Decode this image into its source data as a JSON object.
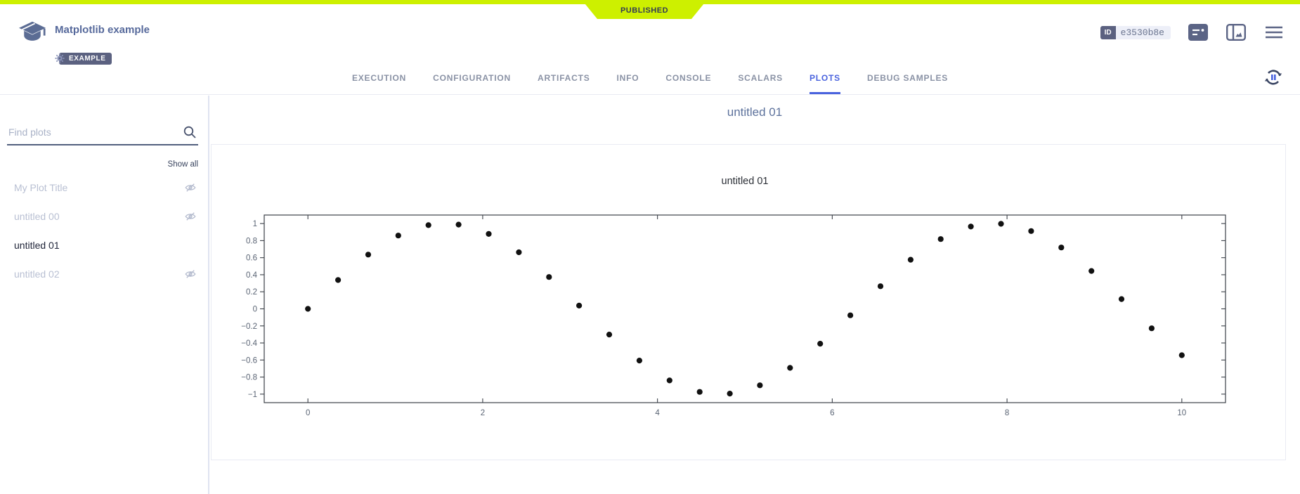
{
  "colors": {
    "status_lime": "#cdf000",
    "tab_active_blue": "#4a63de",
    "slate_icon": "#5b6485",
    "hidden_item_gray": "#b9c0d3",
    "marker_black": "#111111"
  },
  "topbar": {
    "status_label": "PUBLISHED",
    "app_title": "Matplotlib example",
    "project_badge": "EXAMPLE",
    "id_label": "ID",
    "id_value": "e3530b8e"
  },
  "tabs": {
    "items": [
      "EXECUTION",
      "CONFIGURATION",
      "ARTIFACTS",
      "INFO",
      "CONSOLE",
      "SCALARS",
      "PLOTS",
      "DEBUG SAMPLES"
    ],
    "active": "PLOTS"
  },
  "sidebar": {
    "search_placeholder": "Find plots",
    "show_all_label": "Show all",
    "plots": [
      {
        "label": "My Plot Title",
        "hidden": true,
        "active": false
      },
      {
        "label": "untitled 00",
        "hidden": true,
        "active": false
      },
      {
        "label": "untitled 01",
        "hidden": false,
        "active": true
      },
      {
        "label": "untitled 02",
        "hidden": true,
        "active": false
      }
    ]
  },
  "main": {
    "heading": "untitled 01"
  },
  "chart_data": {
    "type": "scatter",
    "title": "untitled 01",
    "x": [
      0,
      0.3448,
      0.6897,
      1.0345,
      1.3793,
      1.7241,
      2.069,
      2.4138,
      2.7586,
      3.1034,
      3.4483,
      3.7931,
      4.1379,
      4.4828,
      4.8276,
      5.1724,
      5.5172,
      5.8621,
      6.2069,
      6.5517,
      6.8966,
      7.2414,
      7.5862,
      7.931,
      8.2759,
      8.6207,
      8.9655,
      9.3103,
      9.6552,
      10
    ],
    "y": [
      0,
      0.338,
      0.6362,
      0.8598,
      0.9817,
      0.9883,
      0.8785,
      0.6637,
      0.3735,
      0.0381,
      -0.3019,
      -0.6063,
      -0.8395,
      -0.9738,
      -0.9934,
      -0.8966,
      -0.6921,
      -0.4088,
      -0.0762,
      0.2653,
      0.5757,
      0.8183,
      0.9645,
      0.997,
      0.9125,
      0.7192,
      0.4441,
      0.1142,
      -0.2284,
      -0.544
    ],
    "xlabel": "",
    "ylabel": "",
    "xlim": [
      -0.5,
      10.5
    ],
    "ylim": [
      -1.1,
      1.1
    ],
    "xticks": [
      0,
      2,
      4,
      6,
      8,
      10
    ],
    "yticks": [
      -1,
      -0.8,
      -0.6,
      -0.4,
      -0.2,
      0,
      0.2,
      0.4,
      0.6,
      0.8,
      1
    ],
    "grid": false,
    "legend": false,
    "marker_color": "#111111",
    "marker_size": 4.1
  }
}
